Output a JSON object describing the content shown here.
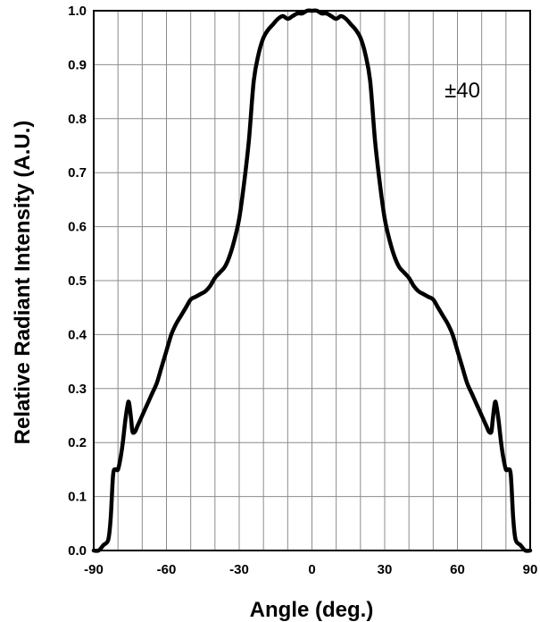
{
  "chart_data": {
    "type": "line",
    "title": "",
    "xlabel": "Angle (deg.)",
    "ylabel": "Relative Radiant Intensity (A.U.)",
    "xlim": [
      -90,
      90
    ],
    "ylim": [
      0,
      1.0
    ],
    "grid": true,
    "x_ticks": [
      -90,
      -60,
      -30,
      0,
      30,
      60,
      90
    ],
    "x_tick_labels": [
      "-90",
      "-60",
      "-30",
      "0",
      "30",
      "60",
      "90"
    ],
    "y_ticks": [
      0.0,
      0.1,
      0.2,
      0.3,
      0.4,
      0.5,
      0.6,
      0.7,
      0.8,
      0.9,
      1.0
    ],
    "y_tick_labels": [
      "0.0",
      "0.1",
      "0.2",
      "0.3",
      "0.4",
      "0.5",
      "0.6",
      "0.7",
      "0.8",
      "0.9",
      "1.0"
    ],
    "annotation": "±40",
    "series": [
      {
        "x": [
          -90,
          -88,
          -86,
          -84,
          -83,
          -82,
          -81,
          -80,
          -79,
          -78,
          -77,
          -76,
          -75.5,
          -75,
          -74.5,
          -74,
          -73,
          -72,
          -70,
          -68,
          -66,
          -64,
          -62,
          -60,
          -58,
          -56,
          -54,
          -52,
          -50,
          -48,
          -46,
          -44,
          -42,
          -40,
          -38,
          -36,
          -34,
          -32,
          -30,
          -28,
          -26,
          -24,
          -22,
          -20,
          -18,
          -16,
          -14,
          -12,
          -10,
          -8,
          -6,
          -4,
          -2,
          0,
          2,
          4,
          6,
          8,
          10,
          12,
          14,
          16,
          18,
          20,
          22,
          24,
          26,
          28,
          30,
          32,
          34,
          36,
          38,
          40,
          42,
          44,
          46,
          48,
          50,
          52,
          54,
          56,
          58,
          60,
          62,
          64,
          66,
          68,
          70,
          72,
          73,
          74,
          74.5,
          75,
          75.5,
          76,
          77,
          78,
          79,
          80,
          81,
          82,
          83,
          84,
          86,
          88,
          90
        ],
        "y": [
          0.0,
          0.0,
          0.01,
          0.02,
          0.06,
          0.14,
          0.15,
          0.15,
          0.17,
          0.2,
          0.24,
          0.27,
          0.275,
          0.26,
          0.24,
          0.22,
          0.22,
          0.23,
          0.25,
          0.27,
          0.29,
          0.31,
          0.34,
          0.37,
          0.4,
          0.42,
          0.435,
          0.45,
          0.465,
          0.47,
          0.475,
          0.48,
          0.49,
          0.505,
          0.515,
          0.525,
          0.545,
          0.575,
          0.615,
          0.68,
          0.76,
          0.87,
          0.92,
          0.95,
          0.965,
          0.975,
          0.985,
          0.99,
          0.985,
          0.99,
          0.995,
          0.995,
          1.0,
          1.0,
          1.0,
          0.995,
          0.995,
          0.99,
          0.985,
          0.99,
          0.985,
          0.975,
          0.965,
          0.95,
          0.92,
          0.87,
          0.76,
          0.68,
          0.615,
          0.575,
          0.545,
          0.525,
          0.515,
          0.505,
          0.49,
          0.48,
          0.475,
          0.47,
          0.465,
          0.45,
          0.435,
          0.42,
          0.4,
          0.37,
          0.34,
          0.31,
          0.29,
          0.27,
          0.25,
          0.23,
          0.22,
          0.22,
          0.24,
          0.26,
          0.275,
          0.27,
          0.24,
          0.2,
          0.17,
          0.15,
          0.15,
          0.14,
          0.06,
          0.02,
          0.01,
          0.0,
          0.0
        ]
      }
    ]
  }
}
